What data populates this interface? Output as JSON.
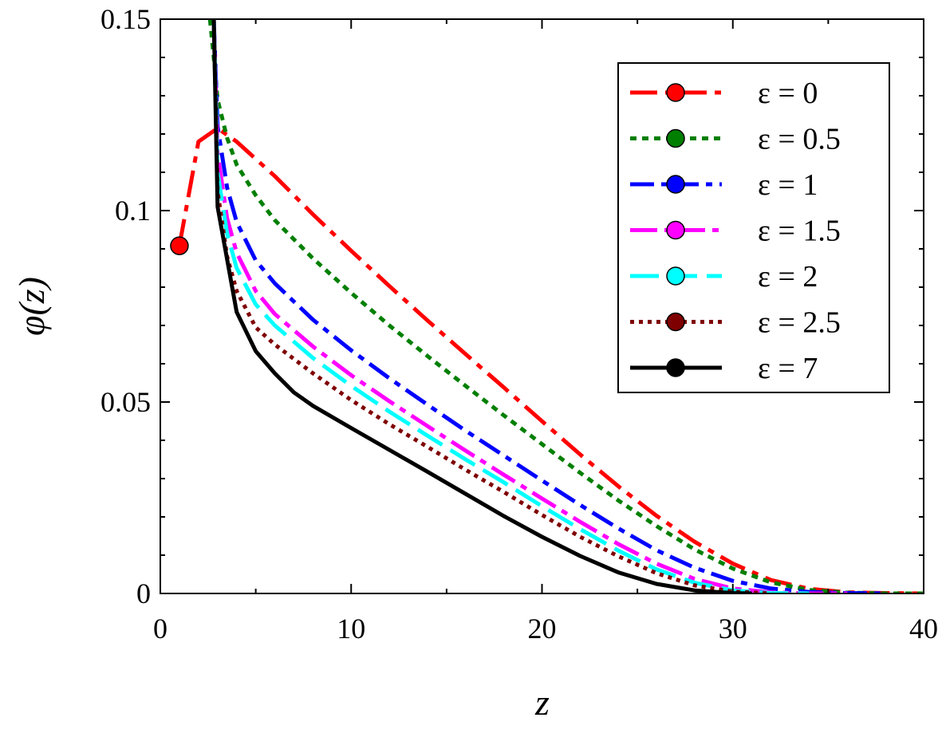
{
  "chart_data": {
    "type": "line",
    "xlabel": "z",
    "ylabel": "φ(z)",
    "xlim": [
      0,
      40
    ],
    "ylim": [
      0,
      0.15
    ],
    "x_ticks": [
      0,
      10,
      20,
      30,
      40
    ],
    "x_tick_labels": [
      "0",
      "10",
      "20",
      "30",
      "40"
    ],
    "y_ticks": [
      0,
      0.05,
      0.1,
      0.15
    ],
    "y_tick_labels": [
      "0",
      "0.05",
      "0.1",
      "0.15"
    ],
    "grid": false,
    "legend_position": "top-right",
    "series": [
      {
        "name": "ε = 0",
        "color": "#ff0000",
        "dash": "34,10,8,10",
        "marker_x": 1,
        "marker_y": 0.0908,
        "x": [
          1,
          2,
          3,
          4,
          6,
          8,
          10,
          12,
          14,
          16,
          18,
          20,
          22,
          24,
          26,
          28,
          30,
          32,
          34,
          36,
          38,
          40
        ],
        "y": [
          0.0908,
          0.118,
          0.1215,
          0.118,
          0.109,
          0.099,
          0.0895,
          0.0803,
          0.0713,
          0.0625,
          0.0538,
          0.045,
          0.0363,
          0.028,
          0.0203,
          0.0135,
          0.0078,
          0.0035,
          0.0012,
          0.0003,
          0.0001,
          0.0
        ]
      },
      {
        "name": "ε = 0.5",
        "color": "#007f00",
        "dash": "8,7",
        "marker_x": null,
        "marker_y": null,
        "x": [
          2.6,
          2.8,
          3,
          3.5,
          4,
          5,
          6,
          8,
          10,
          12,
          14,
          16,
          18,
          20,
          22,
          24,
          26,
          28,
          30,
          32,
          34,
          36,
          38,
          40
        ],
        "y": [
          0.15,
          0.14,
          0.129,
          0.119,
          0.112,
          0.104,
          0.0975,
          0.0875,
          0.0785,
          0.07,
          0.062,
          0.0542,
          0.0465,
          0.039,
          0.0315,
          0.0243,
          0.0176,
          0.0115,
          0.0065,
          0.0029,
          0.0009,
          0.0002,
          0.0,
          0.0
        ]
      },
      {
        "name": "ε = 1",
        "color": "#0000ff",
        "dash": "30,9,8,9",
        "marker_x": null,
        "marker_y": null,
        "x": [
          2.8,
          3,
          3.5,
          4,
          5,
          6,
          8,
          10,
          12,
          14,
          16,
          18,
          20,
          22,
          24,
          26,
          28,
          30,
          32,
          34,
          36,
          38
        ],
        "y": [
          0.15,
          0.122,
          0.106,
          0.097,
          0.087,
          0.081,
          0.0715,
          0.0635,
          0.0562,
          0.0493,
          0.0425,
          0.036,
          0.0295,
          0.0231,
          0.017,
          0.0113,
          0.0067,
          0.0033,
          0.0013,
          0.0004,
          0.0001,
          0.0
        ]
      },
      {
        "name": "ε = 1.5",
        "color": "#ff00ff",
        "dash": "34,9,8,9",
        "marker_x": null,
        "marker_y": null,
        "x": [
          2.8,
          3,
          3.5,
          4,
          5,
          6,
          8,
          10,
          12,
          14,
          16,
          18,
          20,
          22,
          24,
          26,
          28,
          30,
          32,
          34,
          36
        ],
        "y": [
          0.15,
          0.115,
          0.098,
          0.089,
          0.079,
          0.073,
          0.0645,
          0.057,
          0.0502,
          0.0437,
          0.0373,
          0.031,
          0.0248,
          0.0187,
          0.0129,
          0.0078,
          0.0038,
          0.0013,
          0.0003,
          0.0,
          0.0
        ]
      },
      {
        "name": "ε = 2",
        "color": "#00ffff",
        "dash": "36,12",
        "marker_x": null,
        "marker_y": null,
        "x": [
          2.8,
          3,
          3.5,
          4,
          5,
          6,
          8,
          10,
          12,
          14,
          16,
          18,
          20,
          22,
          24,
          26,
          28,
          30,
          32,
          34
        ],
        "y": [
          0.15,
          0.11,
          0.094,
          0.085,
          0.0755,
          0.07,
          0.0615,
          0.0542,
          0.0475,
          0.0412,
          0.035,
          0.029,
          0.0228,
          0.0168,
          0.0112,
          0.0063,
          0.0028,
          0.0008,
          0.0001,
          0.0
        ]
      },
      {
        "name": "ε = 2.5",
        "color": "#7f0000",
        "dash": "5,6",
        "marker_x": null,
        "marker_y": null,
        "x": [
          2.8,
          3,
          3.5,
          4,
          5,
          6,
          8,
          10,
          12,
          14,
          16,
          18,
          20,
          22,
          24,
          26,
          28,
          30,
          32
        ],
        "y": [
          0.15,
          0.105,
          0.088,
          0.079,
          0.0695,
          0.065,
          0.0575,
          0.0505,
          0.0442,
          0.0383,
          0.0323,
          0.0265,
          0.0205,
          0.0148,
          0.0097,
          0.0053,
          0.0021,
          0.0005,
          0.0
        ]
      },
      {
        "name": "ε = 7",
        "color": "#000000",
        "dash": "",
        "marker_x": null,
        "marker_y": null,
        "x": [
          2.8,
          3,
          4,
          5,
          6,
          7,
          8,
          10,
          12,
          14,
          16,
          18,
          20,
          22,
          24,
          26,
          28,
          30,
          31
        ],
        "y": [
          0.15,
          0.101,
          0.0735,
          0.0633,
          0.0575,
          0.0525,
          0.049,
          0.0432,
          0.0375,
          0.0318,
          0.026,
          0.0202,
          0.0148,
          0.0098,
          0.0055,
          0.0025,
          0.0008,
          0.0001,
          0.0
        ]
      }
    ]
  }
}
